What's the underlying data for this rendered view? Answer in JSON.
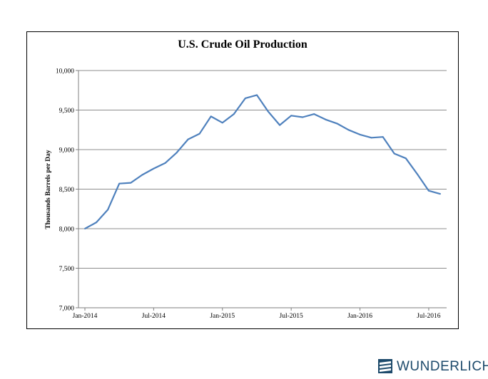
{
  "chart_data": {
    "type": "line",
    "title": "U.S. Crude Oil Production",
    "xlabel": "",
    "ylabel": "Thousands Barrels per Day",
    "ylim": [
      7000,
      10000
    ],
    "y_ticks": [
      7000,
      7500,
      8000,
      8500,
      9000,
      9500,
      10000
    ],
    "y_tick_labels": [
      "7,000",
      "7,500",
      "8,000",
      "8,500",
      "9,000",
      "9,500",
      "10,000"
    ],
    "x_tick_labels": [
      "Jan-2014",
      "Jul-2014",
      "Jan-2015",
      "Jul-2015",
      "Jan-2016",
      "Jul-2016"
    ],
    "x_tick_months": [
      "2014-01",
      "2014-07",
      "2015-01",
      "2015-07",
      "2016-01",
      "2016-07"
    ],
    "grid": true,
    "line_color": "#4f81bd",
    "x": [
      "2014-01",
      "2014-02",
      "2014-03",
      "2014-04",
      "2014-05",
      "2014-06",
      "2014-07",
      "2014-08",
      "2014-09",
      "2014-10",
      "2014-11",
      "2014-12",
      "2015-01",
      "2015-02",
      "2015-03",
      "2015-04",
      "2015-05",
      "2015-06",
      "2015-07",
      "2015-08",
      "2015-09",
      "2015-10",
      "2015-11",
      "2015-12",
      "2016-01",
      "2016-02",
      "2016-03",
      "2016-04",
      "2016-05",
      "2016-06",
      "2016-07",
      "2016-08"
    ],
    "series": [
      {
        "values": [
          8000,
          8080,
          8240,
          8570,
          8580,
          8680,
          8760,
          8830,
          8960,
          9130,
          9200,
          9420,
          9340,
          9450,
          9650,
          9690,
          9480,
          9310,
          9430,
          9410,
          9450,
          9380,
          9330,
          9250,
          9190,
          9150,
          9160,
          8950,
          8890,
          8690,
          8480,
          8440
        ]
      }
    ]
  },
  "brand": {
    "name": "WUNDERLICH",
    "color": "#1d4a6b",
    "icon": "wunderlich-logo-icon"
  }
}
